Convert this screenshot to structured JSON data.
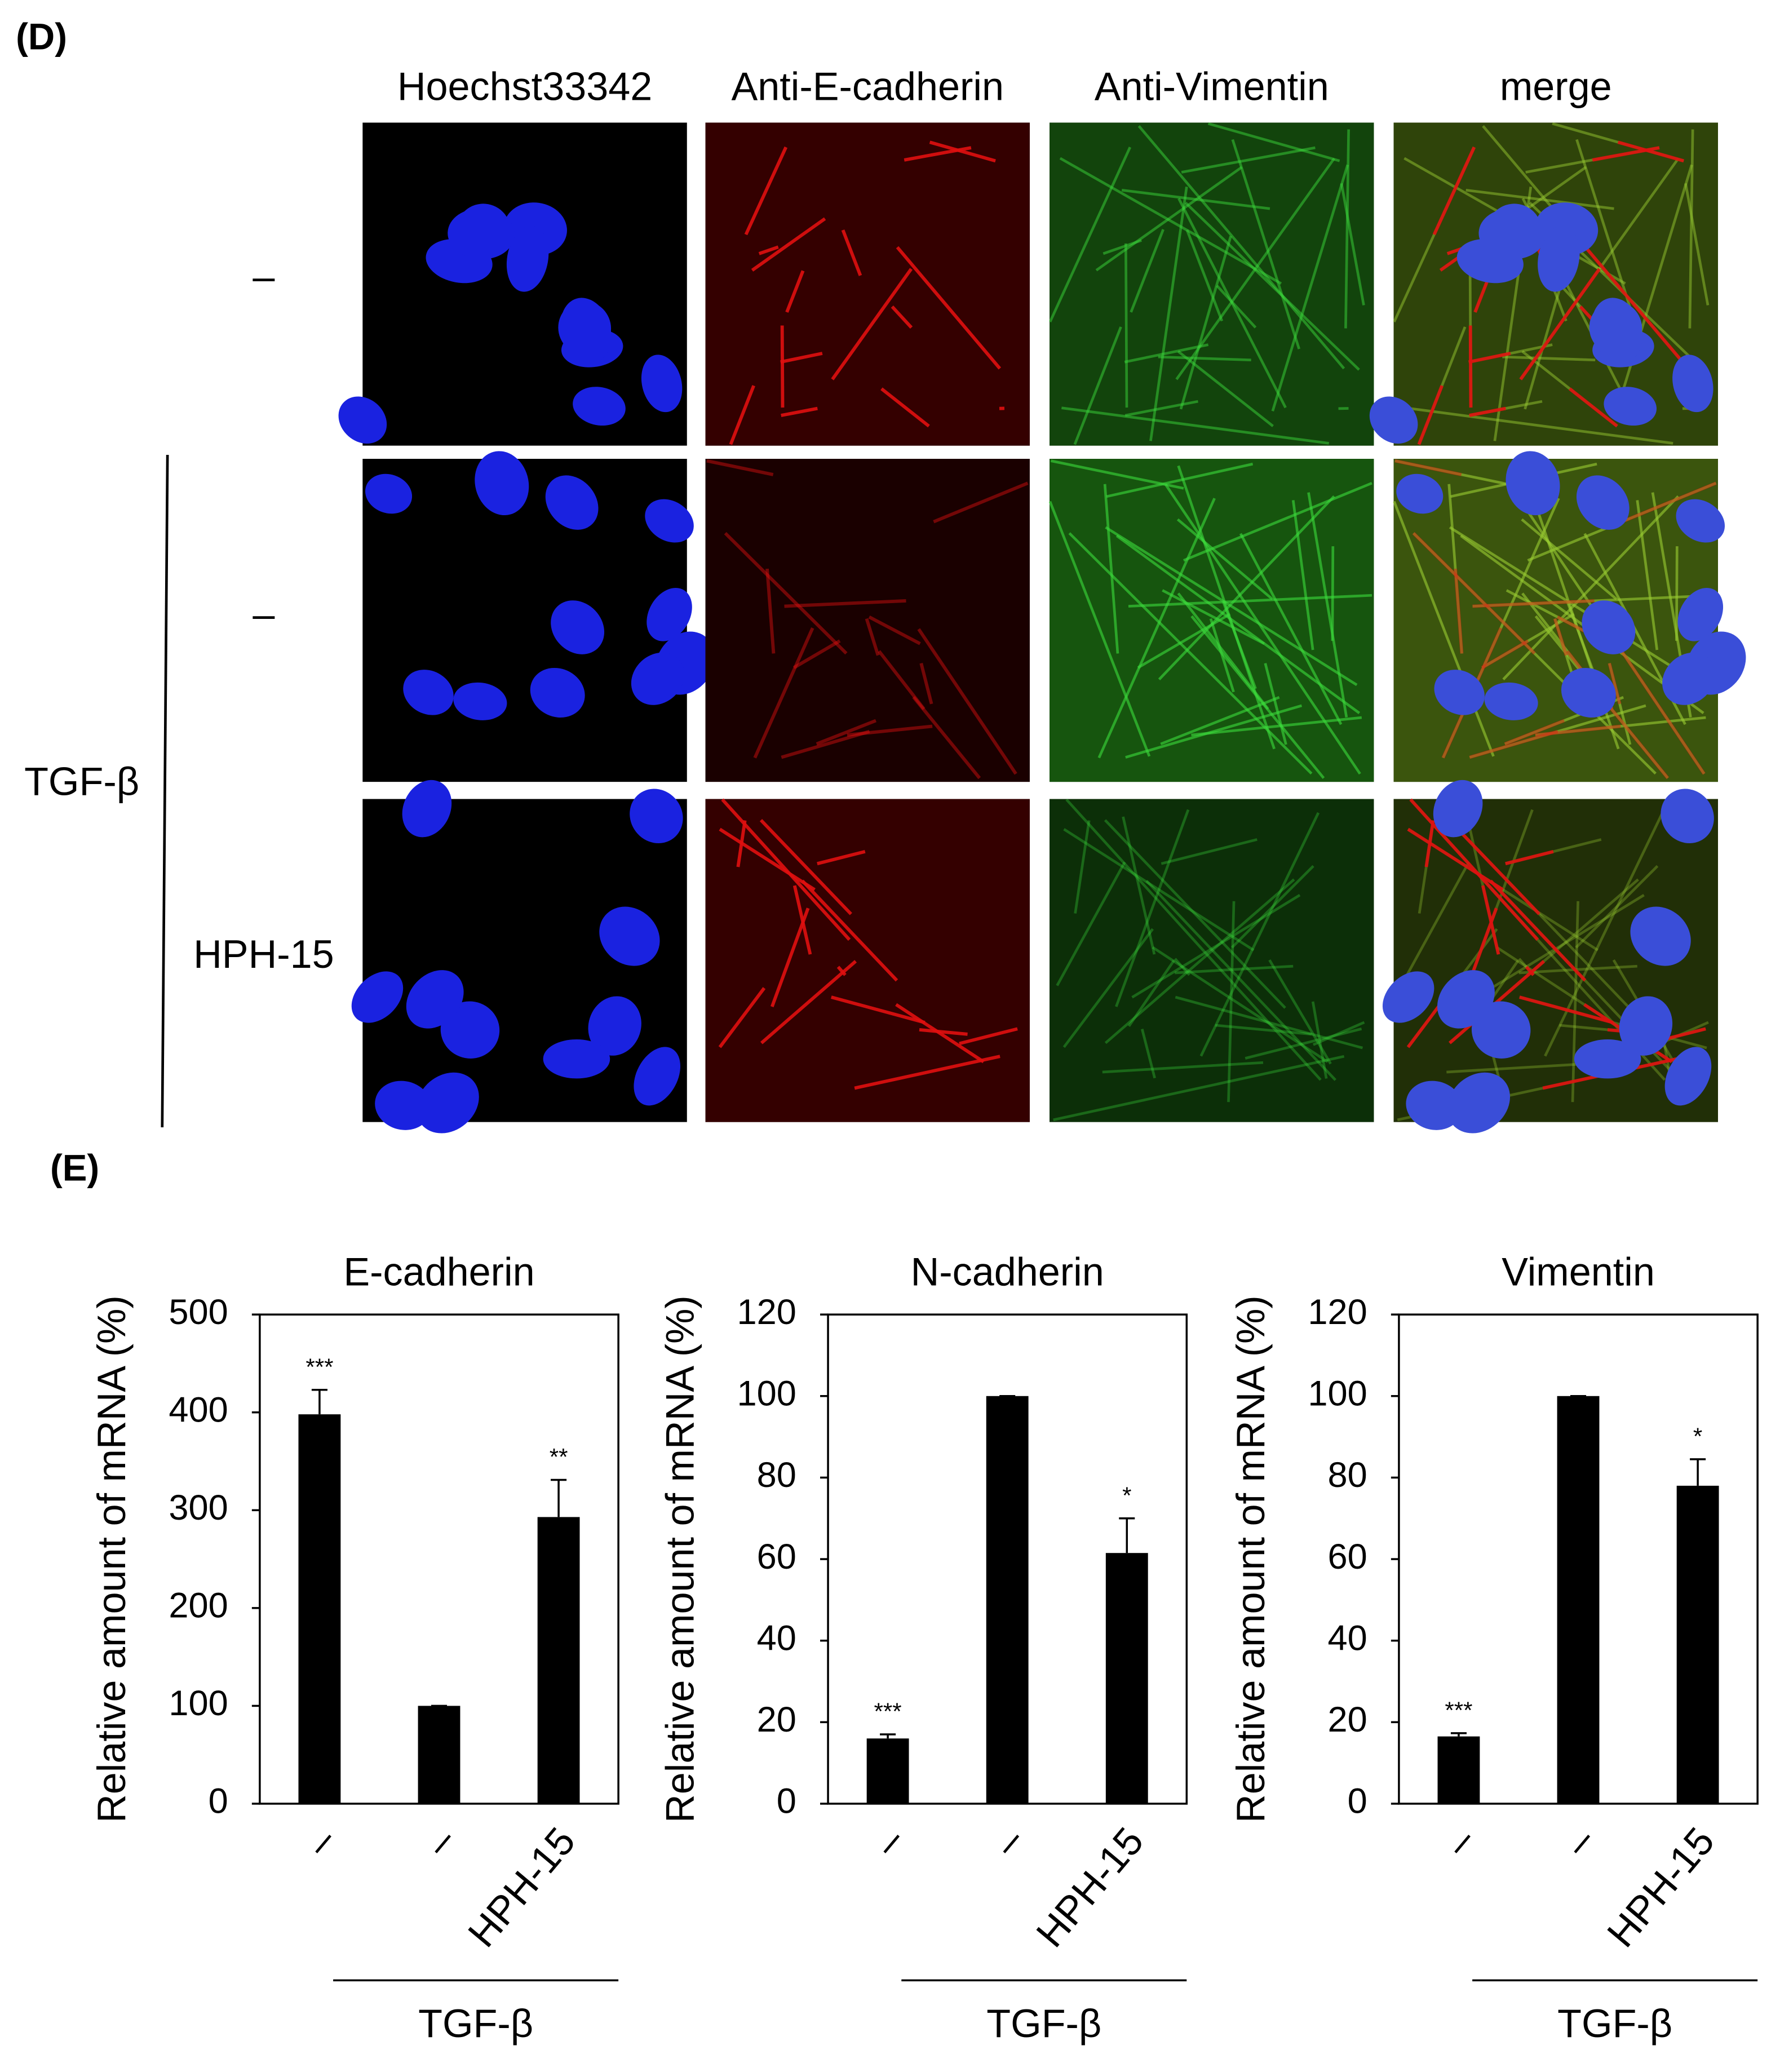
{
  "panel_d": {
    "label": "(D)",
    "columns": [
      "Hoechst33342",
      "Anti-E-cadherin",
      "Anti-Vimentin",
      "merge"
    ],
    "rows": [
      "–",
      "–",
      "HPH-15"
    ],
    "group_label": "TGF-β"
  },
  "panel_e": {
    "label": "(E)"
  },
  "chart_data": [
    {
      "type": "bar",
      "title": "E-cadherin",
      "y_label": "Relative amount of mRNA (%)",
      "categories": [
        "–",
        "–",
        "HPH-15"
      ],
      "values": [
        398,
        100,
        293
      ],
      "errors": [
        25,
        0,
        38
      ],
      "annotations": [
        "***",
        null,
        "**"
      ],
      "group_label": "TGF-β",
      "color": "#000000",
      "ylim": [
        0,
        500
      ],
      "yticks": [
        0,
        100,
        200,
        300,
        400,
        500
      ]
    },
    {
      "type": "bar",
      "title": "N-cadherin",
      "y_label": "Relative amount of mRNA (%)",
      "categories": [
        "–",
        "–",
        "HPH-15"
      ],
      "values": [
        16,
        100,
        61.5
      ],
      "errors": [
        1,
        0,
        8.5
      ],
      "annotations": [
        "***",
        null,
        "*"
      ],
      "group_label": "TGF-β",
      "color": "#000000",
      "ylim": [
        0,
        120
      ],
      "yticks": [
        0,
        20,
        40,
        60,
        80,
        100,
        120
      ]
    },
    {
      "type": "bar",
      "title": "Vimentin",
      "y_label": "Relative amount of mRNA (%)",
      "categories": [
        "–",
        "–",
        "HPH-15"
      ],
      "values": [
        16.5,
        100,
        78
      ],
      "errors": [
        0.8,
        0,
        6.5
      ],
      "annotations": [
        "***",
        null,
        "*"
      ],
      "group_label": "TGF-β",
      "color": "#000000",
      "ylim": [
        0,
        120
      ],
      "yticks": [
        0,
        20,
        40,
        60,
        80,
        100,
        120
      ]
    }
  ]
}
